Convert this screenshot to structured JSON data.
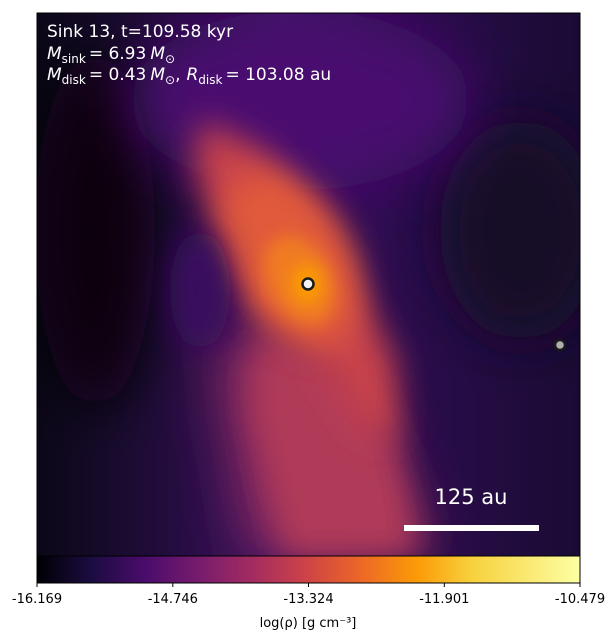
{
  "chart_data": {
    "type": "heatmap",
    "colormap": "inferno",
    "annotation": {
      "line1": "Sink 13, t=109.58 kyr",
      "line2_var": "M",
      "line2_sub": "sink",
      "line2_value": "= 6.93",
      "line2_unit": "M",
      "line2_unit_sub": "⊙",
      "line3_var1": "M",
      "line3_sub1": "disk",
      "line3_value1": "= 0.43",
      "line3_unit1": "M",
      "line3_unit1_sub": "⊙",
      "line3_sep": ",",
      "line3_var2": "R",
      "line3_sub2": "disk",
      "line3_value2": "= 103.08 au"
    },
    "scale_bar_label": "125 au",
    "colorbar": {
      "label": "log(ρ) [g cm⁻³]",
      "min": -16.169,
      "max": -10.479,
      "ticks": [
        "-16.169",
        "-14.746",
        "-13.324",
        "-11.901",
        "-10.479"
      ]
    },
    "sinks": [
      {
        "id": "primary",
        "color": "#f3f3f3"
      },
      {
        "id": "secondary",
        "color": "#b0b0b0"
      }
    ]
  }
}
